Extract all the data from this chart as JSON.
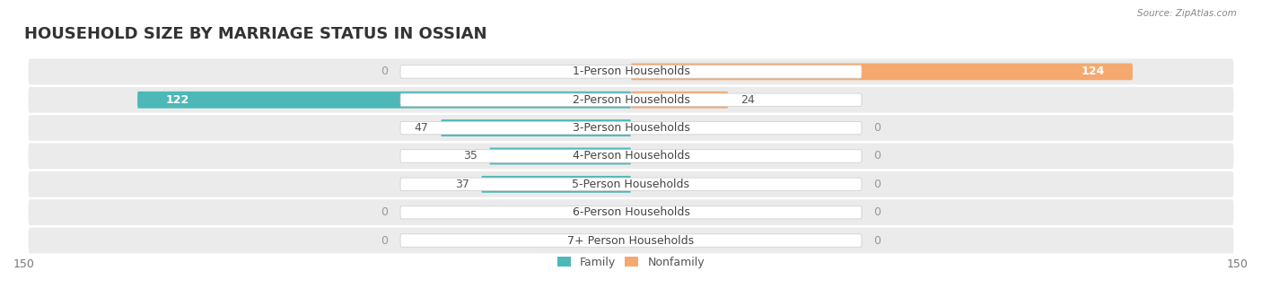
{
  "title": "HOUSEHOLD SIZE BY MARRIAGE STATUS IN OSSIAN",
  "source": "Source: ZipAtlas.com",
  "categories": [
    "7+ Person Households",
    "6-Person Households",
    "5-Person Households",
    "4-Person Households",
    "3-Person Households",
    "2-Person Households",
    "1-Person Households"
  ],
  "family": [
    0,
    0,
    37,
    35,
    47,
    122,
    0
  ],
  "nonfamily": [
    0,
    0,
    0,
    0,
    0,
    24,
    124
  ],
  "family_color": "#4db8b8",
  "nonfamily_color": "#f5a96e",
  "xlim": 150,
  "label_fontsize": 9,
  "title_fontsize": 13,
  "axis_label_fontsize": 9,
  "legend_fontsize": 9
}
